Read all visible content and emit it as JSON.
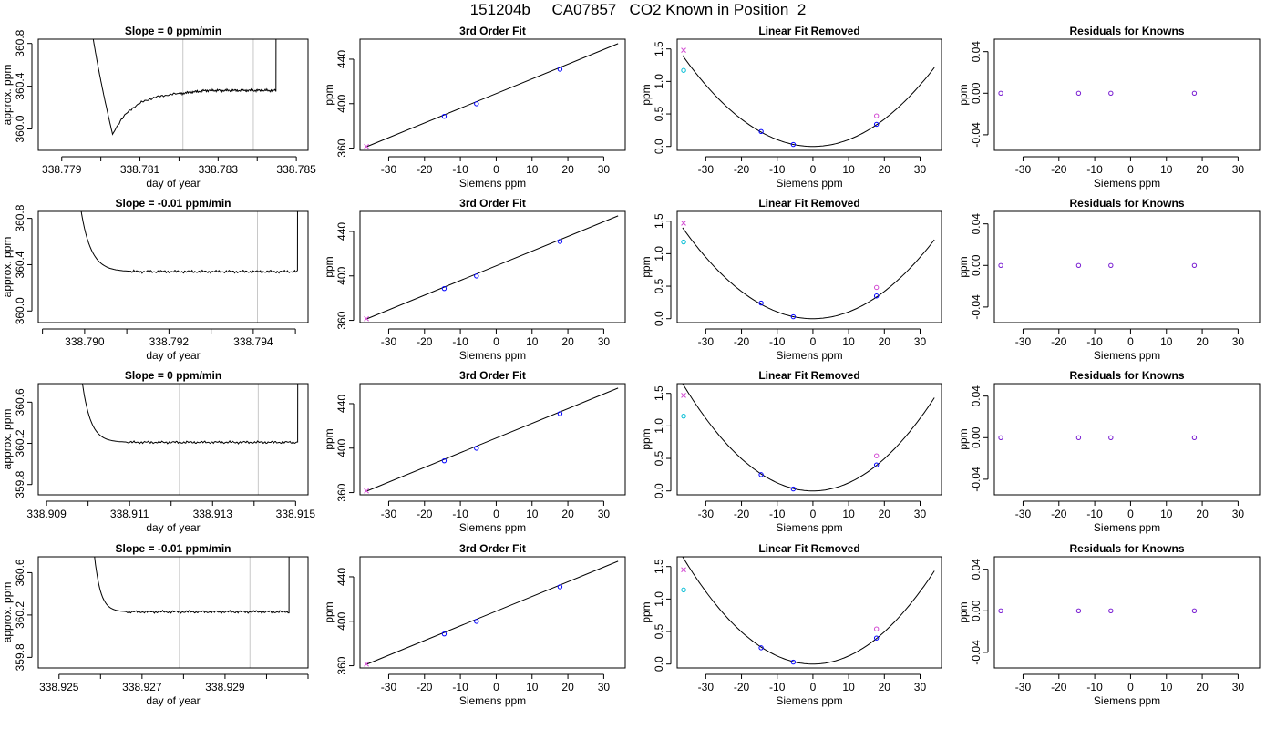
{
  "page_title": "151204b     CA07857   CO2 Known in Position  2",
  "colors": {
    "axis": "#000000",
    "curve": "#000000",
    "marker_line": "#c8c8c8",
    "point_blue": "#0000ff",
    "point_cyan": "#00bcd4",
    "point_magenta": "#d24bd2",
    "point_purple": "#7a1fd2",
    "point_red": "#e05050"
  },
  "fit_common": {
    "xlabel": "Siemens ppm",
    "xticks": [
      -30,
      -20,
      -10,
      0,
      10,
      20,
      30
    ],
    "xlim": [
      -38,
      36
    ],
    "fit3": {
      "title": "3rd Order Fit",
      "ylabel": "ppm",
      "yticks": [
        360,
        400,
        440
      ],
      "ylim": [
        358,
        458
      ],
      "line_x": [
        -36,
        34
      ],
      "line_y": [
        361.5,
        454
      ],
      "points": [
        {
          "x": -36.2,
          "y": 361.5,
          "color": "point_magenta",
          "type": "x"
        },
        {
          "x": -14.5,
          "y": 388.6,
          "color": "point_blue",
          "type": "o"
        },
        {
          "x": -5.5,
          "y": 399.9,
          "color": "point_blue",
          "type": "o"
        },
        {
          "x": 17.8,
          "y": 431.0,
          "color": "point_blue",
          "type": "o"
        }
      ]
    },
    "linear": {
      "title": "Linear Fit Removed",
      "ylabel": "ppm",
      "yticks": [
        0.0,
        0.5,
        1.0,
        1.5
      ],
      "ylim": [
        -0.06,
        1.65
      ]
    },
    "resid": {
      "title": "Residuals for Knowns",
      "ylabel": "ppm",
      "yticks": [
        -0.04,
        0.0,
        0.04
      ],
      "ylim": [
        -0.055,
        0.052
      ],
      "points_x": [
        -36.2,
        -14.5,
        -5.5,
        17.8
      ]
    }
  },
  "rows": [
    {
      "trace": {
        "title": "Slope =  0  ppm/min",
        "xlabel": "day of year",
        "ylabel": "approx. ppm",
        "xlim": [
          338.7784,
          338.7853
        ],
        "xticks": [
          338.779,
          338.78,
          338.781,
          338.782,
          338.783,
          338.784,
          338.785
        ],
        "xtick_labels": [
          "338.779",
          "",
          "338.781",
          "",
          "338.783",
          "",
          "338.785"
        ],
        "ylim": [
          359.8,
          360.84
        ],
        "yticks": [
          360.0,
          360.4,
          360.8
        ],
        "ytick_labels": [
          "360.0",
          "360.4",
          "360.8"
        ],
        "vlines": [
          338.7821,
          338.7839
        ],
        "start_x": 338.7796,
        "end_x": 338.7845,
        "plateau_start": 338.7812,
        "plateau_end": 338.7844,
        "left": {
          "x0": 338.7796,
          "y0": 361.5,
          "x1": 338.7803,
          "y1": 359.7
        },
        "dip": {
          "x": 338.7803,
          "y": 359.95
        },
        "plateau_level": 360.36,
        "right_rise_x": 338.78448
      },
      "linear_curve": {
        "a": 0.00105,
        "b": 0.0
      },
      "linear_points": [
        {
          "x": -36.2,
          "y": 1.48,
          "color": "point_magenta",
          "type": "x"
        },
        {
          "x": -36.2,
          "y": 1.17,
          "color": "point_cyan",
          "type": "o"
        },
        {
          "x": -14.5,
          "y": 0.23,
          "color": "point_blue",
          "type": "o"
        },
        {
          "x": -5.5,
          "y": 0.03,
          "color": "point_blue",
          "type": "o"
        },
        {
          "x": 17.8,
          "y": 0.34,
          "color": "point_blue",
          "type": "o"
        },
        {
          "x": 17.8,
          "y": 0.47,
          "color": "point_magenta",
          "type": "o"
        }
      ]
    },
    {
      "trace": {
        "title": "Slope =  -0.01  ppm/min",
        "xlabel": "day of year",
        "ylabel": "approx. ppm",
        "xlim": [
          338.7889,
          338.7953
        ],
        "xticks": [
          338.789,
          338.79,
          338.791,
          338.792,
          338.793,
          338.794,
          338.795
        ],
        "xtick_labels": [
          "",
          "338.790",
          "",
          "338.792",
          "",
          "338.794",
          ""
        ],
        "ylim": [
          359.9,
          360.86
        ],
        "yticks": [
          360.0,
          360.4,
          360.8
        ],
        "ytick_labels": [
          "360.0",
          "360.4",
          "360.8"
        ],
        "vlines": [
          338.7925,
          338.7941
        ],
        "start_x": 338.7898,
        "end_x": 338.7951,
        "plateau_start": 338.7911,
        "plateau_end": 338.795,
        "left": {
          "x0": 338.7898,
          "y0": 361.2,
          "x1": 338.7911,
          "y1": 360.35
        },
        "dip": null,
        "plateau_level": 360.34,
        "right_rise_x": 338.79505
      },
      "linear_curve": {
        "a": 0.00105,
        "b": 0.0
      },
      "linear_points": [
        {
          "x": -36.2,
          "y": 1.47,
          "color": "point_magenta",
          "type": "x"
        },
        {
          "x": -36.2,
          "y": 1.18,
          "color": "point_cyan",
          "type": "o"
        },
        {
          "x": -14.5,
          "y": 0.24,
          "color": "point_blue",
          "type": "o"
        },
        {
          "x": -5.5,
          "y": 0.03,
          "color": "point_blue",
          "type": "o"
        },
        {
          "x": 17.8,
          "y": 0.35,
          "color": "point_blue",
          "type": "o"
        },
        {
          "x": 17.8,
          "y": 0.48,
          "color": "point_magenta",
          "type": "o"
        }
      ]
    },
    {
      "trace": {
        "title": "Slope =  0  ppm/min",
        "xlabel": "day of year",
        "ylabel": "approx. ppm",
        "xlim": [
          338.9088,
          338.9153
        ],
        "xticks": [
          338.909,
          338.91,
          338.911,
          338.912,
          338.913,
          338.914,
          338.915
        ],
        "xtick_labels": [
          "338.909",
          "",
          "338.911",
          "",
          "338.913",
          "",
          "338.915"
        ],
        "ylim": [
          359.7,
          360.78
        ],
        "yticks": [
          359.8,
          360.2,
          360.6
        ],
        "ytick_labels": [
          "359.8",
          "360.2",
          "360.6"
        ],
        "vlines": [
          338.9122,
          338.9141
        ],
        "start_x": 338.9098,
        "end_x": 338.9151,
        "plateau_start": 338.9109,
        "plateau_end": 338.9148,
        "left": {
          "x0": 338.9098,
          "y0": 361.0,
          "x1": 338.9109,
          "y1": 360.22
        },
        "dip": null,
        "plateau_level": 360.21,
        "right_rise_x": 338.91505
      },
      "linear_curve": {
        "a": 0.00124,
        "b": 0.0
      },
      "linear_points": [
        {
          "x": -36.2,
          "y": 1.47,
          "color": "point_magenta",
          "type": "x"
        },
        {
          "x": -36.2,
          "y": 1.15,
          "color": "point_cyan",
          "type": "o"
        },
        {
          "x": -14.5,
          "y": 0.25,
          "color": "point_blue",
          "type": "o"
        },
        {
          "x": -5.5,
          "y": 0.03,
          "color": "point_blue",
          "type": "o"
        },
        {
          "x": 17.8,
          "y": 0.4,
          "color": "point_blue",
          "type": "o"
        },
        {
          "x": 17.8,
          "y": 0.54,
          "color": "point_magenta",
          "type": "o"
        }
      ]
    },
    {
      "trace": {
        "title": "Slope =  -0.01  ppm/min",
        "xlabel": "day of year",
        "ylabel": "approx. ppm",
        "xlim": [
          338.9245,
          338.931
        ],
        "xticks": [
          338.925,
          338.926,
          338.927,
          338.928,
          338.929,
          338.93,
          338.931
        ],
        "xtick_labels": [
          "338.925",
          "",
          "338.927",
          "",
          "338.929",
          "",
          ""
        ],
        "ylim": [
          359.7,
          360.75
        ],
        "yticks": [
          359.8,
          360.2,
          360.6
        ],
        "ytick_labels": [
          "359.8",
          "360.2",
          "360.6"
        ],
        "vlines": [
          338.9279,
          338.9296
        ],
        "start_x": 338.9258,
        "end_x": 338.9307,
        "plateau_start": 338.9266,
        "plateau_end": 338.9305,
        "left": {
          "x0": 338.9258,
          "y0": 361.0,
          "x1": 338.9266,
          "y1": 360.26
        },
        "dip": null,
        "plateau_level": 360.23,
        "right_rise_x": 338.93054
      },
      "linear_curve": {
        "a": 0.00124,
        "b": 0.0
      },
      "linear_points": [
        {
          "x": -36.2,
          "y": 1.45,
          "color": "point_magenta",
          "type": "x"
        },
        {
          "x": -36.2,
          "y": 1.14,
          "color": "point_cyan",
          "type": "o"
        },
        {
          "x": -14.5,
          "y": 0.25,
          "color": "point_blue",
          "type": "o"
        },
        {
          "x": -5.5,
          "y": 0.03,
          "color": "point_blue",
          "type": "o"
        },
        {
          "x": 17.8,
          "y": 0.4,
          "color": "point_blue",
          "type": "o"
        },
        {
          "x": 17.8,
          "y": 0.54,
          "color": "point_magenta",
          "type": "o"
        }
      ]
    }
  ],
  "chart_data": [
    {
      "type": "line",
      "panel": "row1-trace",
      "title": "Slope =  0  ppm/min",
      "xlabel": "day of year",
      "ylabel": "approx. ppm",
      "xlim": [
        338.7784,
        338.7853
      ],
      "ylim": [
        359.8,
        360.84
      ],
      "plateau_level": 360.36
    },
    {
      "type": "scatter",
      "panel": "row1-fit3",
      "title": "3rd Order Fit",
      "xlabel": "Siemens ppm",
      "ylabel": "ppm",
      "x": [
        -36.2,
        -14.5,
        -5.5,
        17.8
      ],
      "y": [
        361.5,
        388.6,
        399.9,
        431.0
      ]
    },
    {
      "type": "scatter",
      "panel": "row1-linear",
      "title": "Linear Fit Removed",
      "xlabel": "Siemens ppm",
      "ylabel": "ppm",
      "x": [
        -36.2,
        -36.2,
        -14.5,
        -5.5,
        17.8,
        17.8
      ],
      "y": [
        1.48,
        1.17,
        0.23,
        0.03,
        0.34,
        0.47
      ]
    },
    {
      "type": "scatter",
      "panel": "row1-resid",
      "title": "Residuals for Knowns",
      "xlabel": "Siemens ppm",
      "ylabel": "ppm",
      "x": [
        -36.2,
        -14.5,
        -5.5,
        17.8
      ],
      "y": [
        0,
        0,
        0,
        0
      ]
    },
    {
      "type": "line",
      "panel": "row2-trace",
      "title": "Slope =  -0.01  ppm/min",
      "xlabel": "day of year",
      "ylabel": "approx. ppm",
      "xlim": [
        338.7889,
        338.7953
      ],
      "ylim": [
        359.9,
        360.86
      ],
      "plateau_level": 360.34
    },
    {
      "type": "scatter",
      "panel": "row2-linear",
      "title": "Linear Fit Removed",
      "x": [
        -36.2,
        -36.2,
        -14.5,
        -5.5,
        17.8,
        17.8
      ],
      "y": [
        1.47,
        1.18,
        0.24,
        0.03,
        0.35,
        0.48
      ]
    },
    {
      "type": "line",
      "panel": "row3-trace",
      "title": "Slope =  0  ppm/min",
      "xlabel": "day of year",
      "ylabel": "approx. ppm",
      "xlim": [
        338.9088,
        338.9153
      ],
      "ylim": [
        359.7,
        360.78
      ],
      "plateau_level": 360.21
    },
    {
      "type": "scatter",
      "panel": "row3-linear",
      "title": "Linear Fit Removed",
      "x": [
        -36.2,
        -36.2,
        -14.5,
        -5.5,
        17.8,
        17.8
      ],
      "y": [
        1.47,
        1.15,
        0.25,
        0.03,
        0.4,
        0.54
      ]
    },
    {
      "type": "line",
      "panel": "row4-trace",
      "title": "Slope =  -0.01  ppm/min",
      "xlabel": "day of year",
      "ylabel": "approx. ppm",
      "xlim": [
        338.9245,
        338.931
      ],
      "ylim": [
        359.7,
        360.75
      ],
      "plateau_level": 360.23
    },
    {
      "type": "scatter",
      "panel": "row4-linear",
      "title": "Linear Fit Removed",
      "x": [
        -36.2,
        -36.2,
        -14.5,
        -5.5,
        17.8,
        17.8
      ],
      "y": [
        1.45,
        1.14,
        0.25,
        0.03,
        0.4,
        0.54
      ]
    }
  ]
}
